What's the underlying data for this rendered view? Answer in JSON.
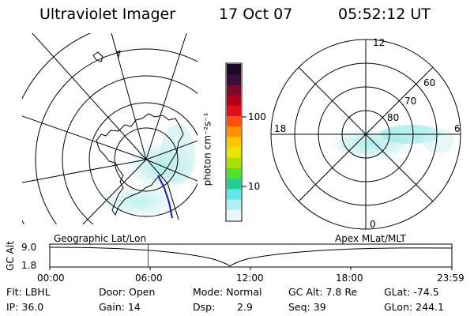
{
  "header": {
    "instrument": "Ultraviolet Imager",
    "date": "17 Oct 07",
    "time": "05:52:12 UT"
  },
  "geo_map": {
    "projection_label": "Geographic Lat/Lon"
  },
  "polar_map": {
    "projection_label": "Apex MLat/MLT",
    "mlt_labels": [
      "12",
      "18",
      "6",
      "0"
    ],
    "mlat_labels": [
      "60",
      "70",
      "80"
    ]
  },
  "colorbar": {
    "unit_label": "photon cm⁻²s⁻¹",
    "tick_labels": [
      "100",
      "10"
    ],
    "colors": [
      "#1b0a24",
      "#3a0c3a",
      "#7a0a2a",
      "#b0001a",
      "#e0101a",
      "#ff5010",
      "#ff9000",
      "#ffc800",
      "#e8e400",
      "#a8e000",
      "#50e030",
      "#20d090",
      "#60e8e8",
      "#b0f0f0",
      "#e8f8f8"
    ]
  },
  "altitude_plot": {
    "axis_title": "GC Alt",
    "y_ticks": [
      "9.0",
      "1.8"
    ],
    "x_ticks": [
      "00:00",
      "06:00",
      "12:00",
      "18:00",
      "23:59"
    ],
    "current_time_marker_fraction": 0.2445
  },
  "status": {
    "flt": "Flt: LBHL",
    "door": "Door: Open",
    "mode": "Mode: Normal",
    "gc_alt": "GC Alt: 7.8 Re",
    "glat": "GLat: -74.5",
    "ip": "IP: 36.0",
    "gain": "Gain: 14",
    "dsp_label": "Dsp:",
    "dsp_value": "2.9",
    "seq": "Seq: 39",
    "glon": "GLon: 244.1"
  }
}
